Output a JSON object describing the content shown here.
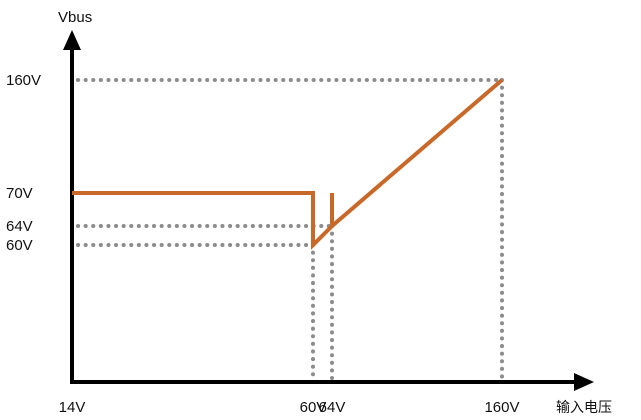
{
  "chart_data": {
    "type": "line",
    "ylabel": "Vbus",
    "xlabel": "输入电压",
    "x_ticks": [
      {
        "value": 14,
        "label": "14V"
      },
      {
        "value": 60,
        "label": "60V"
      },
      {
        "value": 64,
        "label": "64V"
      },
      {
        "value": 160,
        "label": "160V"
      }
    ],
    "y_ticks": [
      {
        "value": 160,
        "label": "160V"
      },
      {
        "value": 70,
        "label": "70V"
      },
      {
        "value": 64,
        "label": "64V"
      },
      {
        "value": 60,
        "label": "60V"
      }
    ],
    "series": [
      {
        "color": "#c8692a",
        "points": [
          [
            14,
            70
          ],
          [
            60,
            70
          ],
          [
            60,
            60
          ],
          [
            64,
            64
          ],
          [
            64,
            70
          ],
          [
            64,
            64
          ],
          [
            160,
            160
          ]
        ]
      }
    ],
    "guides": [
      {
        "x": 60,
        "y": 60
      },
      {
        "x": 64,
        "y": 64
      },
      {
        "x": 160,
        "y": 160
      }
    ],
    "axis_color": "#000000",
    "guide_color": "#8c8c8c"
  }
}
